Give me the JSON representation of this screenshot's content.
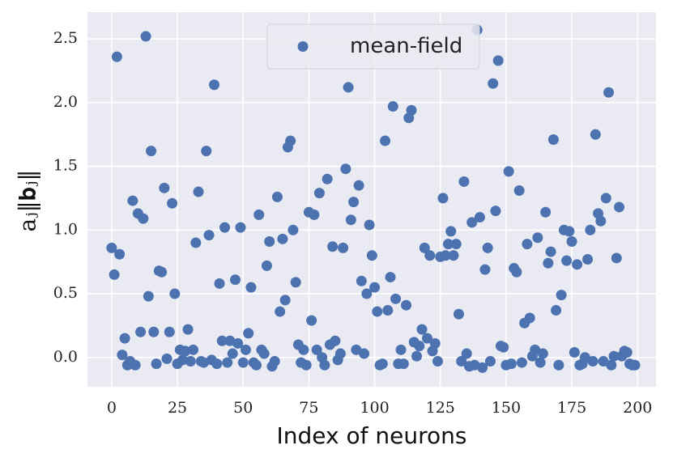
{
  "chart_data": {
    "type": "scatter",
    "x_label": "Index of neurons",
    "y_label": "aⱼ‖𝐛ⱼ‖",
    "series": [
      {
        "name": "mean-field",
        "color": "#4c72b0",
        "x": [
          0,
          1,
          2,
          3,
          4,
          5,
          6,
          7,
          8,
          9,
          10,
          11,
          12,
          13,
          14,
          15,
          16,
          17,
          18,
          19,
          20,
          21,
          22,
          23,
          24,
          25,
          26,
          27,
          28,
          29,
          30,
          31,
          32,
          33,
          34,
          35,
          36,
          37,
          38,
          39,
          40,
          41,
          42,
          43,
          44,
          45,
          46,
          47,
          48,
          49,
          50,
          51,
          52,
          53,
          54,
          55,
          56,
          57,
          58,
          59,
          60,
          61,
          62,
          63,
          64,
          65,
          66,
          67,
          68,
          69,
          70,
          71,
          72,
          73,
          74,
          75,
          76,
          77,
          78,
          79,
          80,
          81,
          82,
          83,
          84,
          85,
          86,
          87,
          88,
          89,
          90,
          91,
          92,
          93,
          94,
          95,
          96,
          97,
          98,
          99,
          100,
          101,
          102,
          103,
          104,
          105,
          106,
          107,
          108,
          109,
          110,
          111,
          112,
          113,
          114,
          115,
          116,
          117,
          118,
          119,
          120,
          121,
          122,
          123,
          124,
          125,
          126,
          127,
          128,
          129,
          130,
          131,
          132,
          133,
          134,
          135,
          136,
          137,
          138,
          139,
          140,
          141,
          142,
          143,
          144,
          145,
          146,
          147,
          148,
          149,
          150,
          151,
          152,
          153,
          154,
          155,
          156,
          157,
          158,
          159,
          160,
          161,
          162,
          163,
          164,
          165,
          166,
          167,
          168,
          169,
          170,
          171,
          172,
          173,
          174,
          175,
          176,
          177,
          178,
          179,
          180,
          181,
          182,
          183,
          184,
          185,
          186,
          187,
          188,
          189,
          190,
          191,
          192,
          193,
          194,
          195,
          196,
          197,
          198,
          199
        ],
        "values": [
          0.86,
          0.65,
          2.36,
          0.81,
          0.02,
          0.15,
          -0.06,
          -0.03,
          1.23,
          -0.06,
          1.13,
          0.2,
          1.09,
          2.52,
          0.48,
          1.62,
          0.2,
          -0.05,
          0.68,
          0.67,
          1.33,
          -0.01,
          0.2,
          1.21,
          0.5,
          -0.05,
          0.06,
          -0.02,
          0.05,
          0.22,
          -0.03,
          0.06,
          0.9,
          1.3,
          -0.03,
          -0.04,
          1.62,
          0.96,
          -0.02,
          2.14,
          -0.05,
          0.58,
          0.13,
          1.02,
          -0.04,
          0.13,
          0.03,
          0.61,
          0.11,
          1.02,
          -0.04,
          0.06,
          0.19,
          0.55,
          -0.04,
          -0.06,
          1.12,
          0.06,
          0.03,
          0.72,
          0.91,
          -0.07,
          -0.03,
          1.26,
          0.36,
          0.93,
          0.45,
          1.65,
          1.7,
          1.0,
          0.59,
          0.1,
          -0.04,
          0.06,
          -0.06,
          1.14,
          0.29,
          1.12,
          0.06,
          1.29,
          0.0,
          -0.06,
          1.4,
          0.1,
          0.87,
          0.13,
          -0.02,
          0.03,
          0.86,
          1.48,
          2.12,
          1.08,
          1.22,
          0.06,
          1.35,
          0.6,
          0.03,
          0.5,
          1.04,
          0.8,
          0.55,
          0.36,
          -0.06,
          -0.05,
          1.7,
          0.37,
          0.63,
          1.97,
          0.46,
          -0.05,
          0.06,
          -0.05,
          0.41,
          1.88,
          1.94,
          0.12,
          0.01,
          0.09,
          0.22,
          0.86,
          0.15,
          0.8,
          0.05,
          0.11,
          -0.03,
          0.79,
          1.25,
          0.8,
          0.89,
          0.99,
          0.8,
          0.89,
          0.34,
          -0.03,
          1.38,
          0.03,
          -0.07,
          1.06,
          -0.06,
          2.57,
          1.1,
          -0.08,
          0.69,
          0.86,
          -0.03,
          2.15,
          1.15,
          2.33,
          0.09,
          0.08,
          -0.06,
          1.46,
          -0.05,
          0.7,
          0.67,
          1.31,
          -0.04,
          0.27,
          0.89,
          0.31,
          0.01,
          0.06,
          0.94,
          -0.04,
          0.03,
          1.14,
          0.74,
          0.83,
          1.71,
          0.37,
          -0.06,
          0.49,
          1.0,
          0.76,
          0.99,
          0.91,
          0.04,
          0.73,
          -0.06,
          -0.05,
          0.0,
          0.77,
          1.0,
          -0.03,
          1.75,
          1.13,
          1.07,
          -0.03,
          1.25,
          2.08,
          -0.06,
          0.01,
          0.78,
          1.18,
          0.01,
          0.05,
          0.04,
          -0.05,
          -0.06,
          -0.06
        ]
      }
    ],
    "xlim": [
      -9.2,
      207
    ],
    "ylim": [
      -0.23,
      2.71
    ],
    "xticks": [
      0,
      25,
      50,
      75,
      100,
      125,
      150,
      175,
      200
    ],
    "yticks": [
      {
        "value": 0,
        "label": "0.0"
      },
      0.5,
      {
        "value": 1,
        "label": "1.0"
      },
      1.5,
      {
        "value": 2,
        "label": "2.0"
      },
      2.5
    ],
    "grid": true,
    "legend": "upper center"
  }
}
